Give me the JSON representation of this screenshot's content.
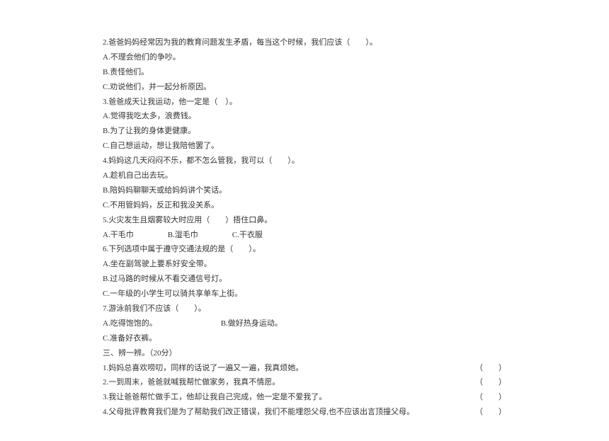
{
  "colors": {
    "text": "#333333",
    "background": "#ffffff"
  },
  "font": {
    "size": 11,
    "lineHeight": 1.9
  },
  "q2": {
    "stem": "2.爸爸妈妈经常因为我的教育问题发生矛盾，每当这个时候，我们应该（　　）。",
    "A": "A.不理会他们的争吵。",
    "B": "B.责怪他们。",
    "C": "C.劝说他们，并一起分析原因。"
  },
  "q3": {
    "stem": "3.爸爸成天让我运动，他一定是（　）。",
    "A": "A.觉得我吃太多，浪费钱。",
    "B": "B.为了让我的身体更健康。",
    "C": "C.自己想运动，想让我陪他罢了。"
  },
  "q4": {
    "stem": "4.妈妈这几天闷闷不乐，都不怎么管我，我可以（　　）。",
    "A": "A.趁机自己出去玩。",
    "B": "B.陪妈妈聊聊天或给妈妈讲个笑话。",
    "C": "C.不用管妈妈，反正和我没关系。"
  },
  "q5": {
    "stem": "5.火灾发生且烟雾较大时应用（　　）捂住口鼻。",
    "A": "A.干毛巾",
    "B": "B.湿毛巾",
    "C": "C.干衣服"
  },
  "q6": {
    "stem": "6.下列选项中属于遵守交通法规的是（　　）。",
    "A": "A.坐在副驾驶上要系好安全带。",
    "B": "B.过马路的时候从不看交通信号灯。",
    "C": "C.一年级的小学生可以骑共享单车上街。"
  },
  "q7": {
    "stem": "7.游泳前我们不应该（　　）。",
    "A": "A.吃得饱饱的。",
    "B": "B.做好热身运动。",
    "C": "C.准备好衣裤。"
  },
  "section3": "三、辨一辨。（20分）",
  "judge1": {
    "text": "1.妈妈总喜欢唠叨，同样的话说了一遍又一遍，我真烦她。",
    "blank": "（　　）"
  },
  "judge2": {
    "text": "2.一到周末，爸爸就喊我帮忙做家务，我真不情愿。",
    "blank": "（　　）"
  },
  "judge3": {
    "text": "3.我让爸爸帮忙做手工，他却让我自己完成，他一定是不爱我了。",
    "blank": "（　　）"
  },
  "judge4": {
    "line1": "4.父母批评教育我们是为了帮助我们改正错误，我们不能埋怨父母,也不应该出言顶撞父母。",
    "blank": "（　　）"
  }
}
